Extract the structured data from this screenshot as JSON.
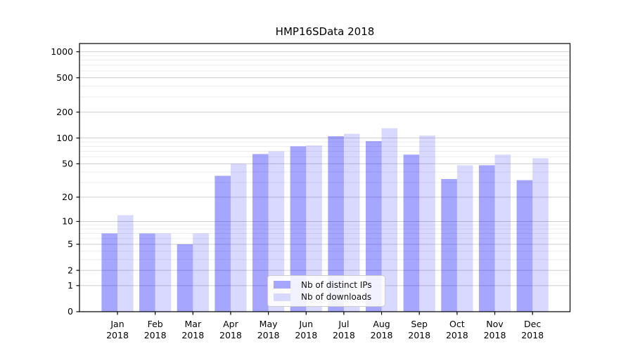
{
  "chart_data": {
    "type": "bar",
    "title": "HMP16SData 2018",
    "categories": [
      "Jan 2018",
      "Feb 2018",
      "Mar 2018",
      "Apr 2018",
      "May 2018",
      "Jun 2018",
      "Jul 2018",
      "Aug 2018",
      "Sep 2018",
      "Oct 2018",
      "Nov 2018",
      "Dec 2018"
    ],
    "series": [
      {
        "name": "Nb of distinct IPs",
        "base_color": "#0000ff",
        "alpha": 0.35,
        "composited_color": "#a6a6ff",
        "values": [
          7,
          7,
          5,
          36,
          65,
          80,
          105,
          92,
          64,
          33,
          48,
          32
        ]
      },
      {
        "name": "Nb of downloads",
        "base_color": "#0000ff",
        "alpha": 0.15,
        "composited_color": "#d9d9ff",
        "values": [
          12,
          7,
          7,
          50,
          70,
          82,
          112,
          130,
          107,
          48,
          64,
          58
        ]
      }
    ],
    "xlabel": "",
    "ylabel": "",
    "y_scale": "log1p",
    "y_ticks": [
      0,
      1,
      2,
      5,
      10,
      20,
      50,
      100,
      200,
      500,
      1000
    ],
    "y_minor_gridlines": [
      3,
      4,
      6,
      7,
      8,
      9,
      30,
      40,
      60,
      70,
      80,
      90,
      300,
      400,
      600,
      700,
      800,
      900
    ],
    "ylim": [
      0,
      1243
    ],
    "grid": true,
    "grid_major_color": "#cfcfcf",
    "grid_minor_color": "#ededed",
    "spine_color": "#000000",
    "legend_position": "lower-center"
  }
}
